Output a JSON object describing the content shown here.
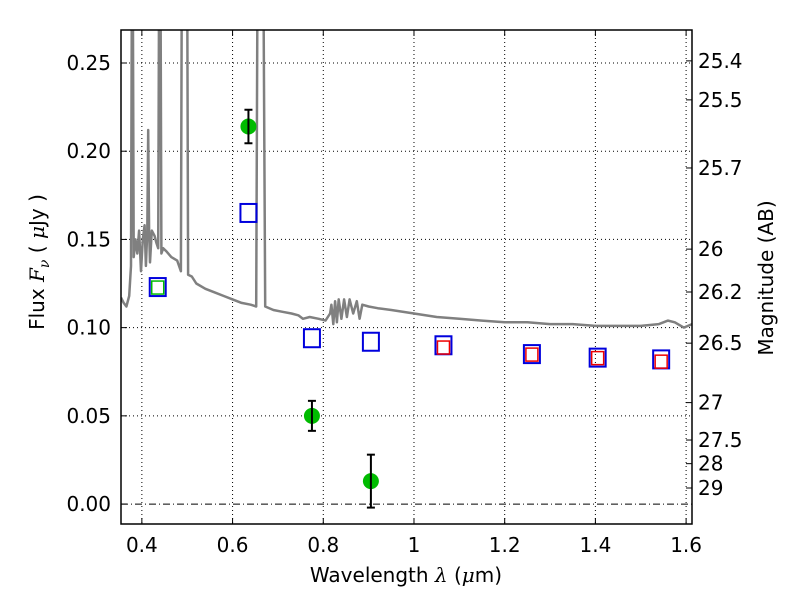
{
  "chart_data": {
    "type": "scatter",
    "title": "",
    "xlabel": "Wavelength  λ (μm)",
    "ylabel": "Flux  Fν  ( μJy )",
    "ylabel_right": "Magnitude (AB)",
    "xlim": [
      0.354,
      1.613
    ],
    "ylim": [
      -0.0113,
      0.2687
    ],
    "grid": true,
    "x_ticks": [
      {
        "value": 0.4,
        "label": "0.4"
      },
      {
        "value": 0.6,
        "label": "0.6"
      },
      {
        "value": 0.8,
        "label": "0.8"
      },
      {
        "value": 1.0,
        "label": "1"
      },
      {
        "value": 1.2,
        "label": "1.2"
      },
      {
        "value": 1.4,
        "label": "1.4"
      },
      {
        "value": 1.6,
        "label": "1.6"
      }
    ],
    "y_ticks": [
      {
        "value": 0.0,
        "label": "0.00"
      },
      {
        "value": 0.05,
        "label": "0.05"
      },
      {
        "value": 0.1,
        "label": "0.10"
      },
      {
        "value": 0.15,
        "label": "0.15"
      },
      {
        "value": 0.2,
        "label": "0.20"
      },
      {
        "value": 0.25,
        "label": "0.25"
      }
    ],
    "y_right_ticks": [
      {
        "flux": 0.2512,
        "label": "25.4"
      },
      {
        "flux": 0.2291,
        "label": "25.5"
      },
      {
        "flux": 0.1905,
        "label": "25.7"
      },
      {
        "flux": 0.1445,
        "label": "26"
      },
      {
        "flux": 0.1202,
        "label": "26.2"
      },
      {
        "flux": 0.0912,
        "label": "26.5"
      },
      {
        "flux": 0.0575,
        "label": "27"
      },
      {
        "flux": 0.0363,
        "label": "27.5"
      },
      {
        "flux": 0.0229,
        "label": "28"
      },
      {
        "flux": 0.0091,
        "label": "29"
      }
    ],
    "zero_line": 0.0,
    "colors": {
      "spectrum": "#808080",
      "observed": "#00bb00",
      "model_box": "#0000dd",
      "inner_green": "#00bb00",
      "inner_red": "#ee0000",
      "errorbar": "#000000",
      "grid": "#000000"
    },
    "series": [
      {
        "name": "model spectrum",
        "kind": "line",
        "points": [
          [
            0.354,
            0.117
          ],
          [
            0.36,
            0.114
          ],
          [
            0.366,
            0.112
          ],
          [
            0.372,
            0.118
          ],
          [
            0.376,
            0.135
          ],
          [
            0.378,
            0.3
          ],
          [
            0.38,
            0.3
          ],
          [
            0.382,
            0.14
          ],
          [
            0.386,
            0.15
          ],
          [
            0.39,
            0.142
          ],
          [
            0.394,
            0.155
          ],
          [
            0.398,
            0.132
          ],
          [
            0.402,
            0.15
          ],
          [
            0.406,
            0.158
          ],
          [
            0.409,
            0.135
          ],
          [
            0.412,
            0.155
          ],
          [
            0.414,
            0.212
          ],
          [
            0.416,
            0.155
          ],
          [
            0.418,
            0.137
          ],
          [
            0.422,
            0.155
          ],
          [
            0.428,
            0.152
          ],
          [
            0.432,
            0.148
          ],
          [
            0.436,
            0.145
          ],
          [
            0.438,
            0.3
          ],
          [
            0.441,
            0.3
          ],
          [
            0.443,
            0.142
          ],
          [
            0.447,
            0.145
          ],
          [
            0.455,
            0.143
          ],
          [
            0.465,
            0.14
          ],
          [
            0.478,
            0.138
          ],
          [
            0.486,
            0.132
          ],
          [
            0.488,
            0.3
          ],
          [
            0.492,
            0.3
          ],
          [
            0.496,
            0.3
          ],
          [
            0.5,
            0.3
          ],
          [
            0.502,
            0.13
          ],
          [
            0.51,
            0.129
          ],
          [
            0.52,
            0.125
          ],
          [
            0.54,
            0.122
          ],
          [
            0.56,
            0.12
          ],
          [
            0.58,
            0.118
          ],
          [
            0.6,
            0.116
          ],
          [
            0.62,
            0.114
          ],
          [
            0.64,
            0.113
          ],
          [
            0.652,
            0.112
          ],
          [
            0.655,
            0.3
          ],
          [
            0.66,
            0.3
          ],
          [
            0.664,
            0.3
          ],
          [
            0.668,
            0.3
          ],
          [
            0.672,
            0.112
          ],
          [
            0.69,
            0.11
          ],
          [
            0.71,
            0.109
          ],
          [
            0.73,
            0.108
          ],
          [
            0.745,
            0.107
          ],
          [
            0.755,
            0.105
          ],
          [
            0.77,
            0.106
          ],
          [
            0.79,
            0.105
          ],
          [
            0.805,
            0.104
          ],
          [
            0.815,
            0.108
          ],
          [
            0.818,
            0.113
          ],
          [
            0.822,
            0.102
          ],
          [
            0.826,
            0.115
          ],
          [
            0.83,
            0.103
          ],
          [
            0.834,
            0.116
          ],
          [
            0.84,
            0.105
          ],
          [
            0.846,
            0.116
          ],
          [
            0.852,
            0.106
          ],
          [
            0.858,
            0.116
          ],
          [
            0.866,
            0.108
          ],
          [
            0.874,
            0.115
          ],
          [
            0.88,
            0.105
          ],
          [
            0.886,
            0.113
          ],
          [
            0.9,
            0.112
          ],
          [
            0.92,
            0.111
          ],
          [
            0.95,
            0.11
          ],
          [
            1.0,
            0.108
          ],
          [
            1.05,
            0.106
          ],
          [
            1.1,
            0.105
          ],
          [
            1.15,
            0.104
          ],
          [
            1.2,
            0.103
          ],
          [
            1.25,
            0.103
          ],
          [
            1.3,
            0.102
          ],
          [
            1.35,
            0.102
          ],
          [
            1.4,
            0.101
          ],
          [
            1.45,
            0.101
          ],
          [
            1.5,
            0.101
          ],
          [
            1.54,
            0.102
          ],
          [
            1.56,
            0.104
          ],
          [
            1.575,
            0.103
          ],
          [
            1.595,
            0.1
          ],
          [
            1.613,
            0.102
          ]
        ]
      },
      {
        "name": "observed photometry",
        "kind": "points-errorbars",
        "points": [
          {
            "x": 0.635,
            "y": 0.214,
            "err": 0.0095
          },
          {
            "x": 0.775,
            "y": 0.05,
            "err": 0.0085
          },
          {
            "x": 0.905,
            "y": 0.013,
            "err": 0.015
          }
        ]
      },
      {
        "name": "model photometry",
        "kind": "open-squares",
        "points": [
          {
            "x": 0.435,
            "y": 0.123
          },
          {
            "x": 0.635,
            "y": 0.165
          },
          {
            "x": 0.775,
            "y": 0.094
          },
          {
            "x": 0.905,
            "y": 0.092
          },
          {
            "x": 1.065,
            "y": 0.09
          },
          {
            "x": 1.26,
            "y": 0.085
          },
          {
            "x": 1.405,
            "y": 0.083
          },
          {
            "x": 1.545,
            "y": 0.082
          }
        ]
      },
      {
        "name": "inner model green",
        "kind": "open-squares-small",
        "color": "green",
        "points": [
          {
            "x": 0.435,
            "y": 0.123
          }
        ]
      },
      {
        "name": "inner model red",
        "kind": "open-squares-small",
        "color": "red",
        "points": [
          {
            "x": 1.065,
            "y": 0.089
          },
          {
            "x": 1.26,
            "y": 0.085
          },
          {
            "x": 1.405,
            "y": 0.083
          },
          {
            "x": 1.545,
            "y": 0.081
          }
        ]
      }
    ]
  }
}
